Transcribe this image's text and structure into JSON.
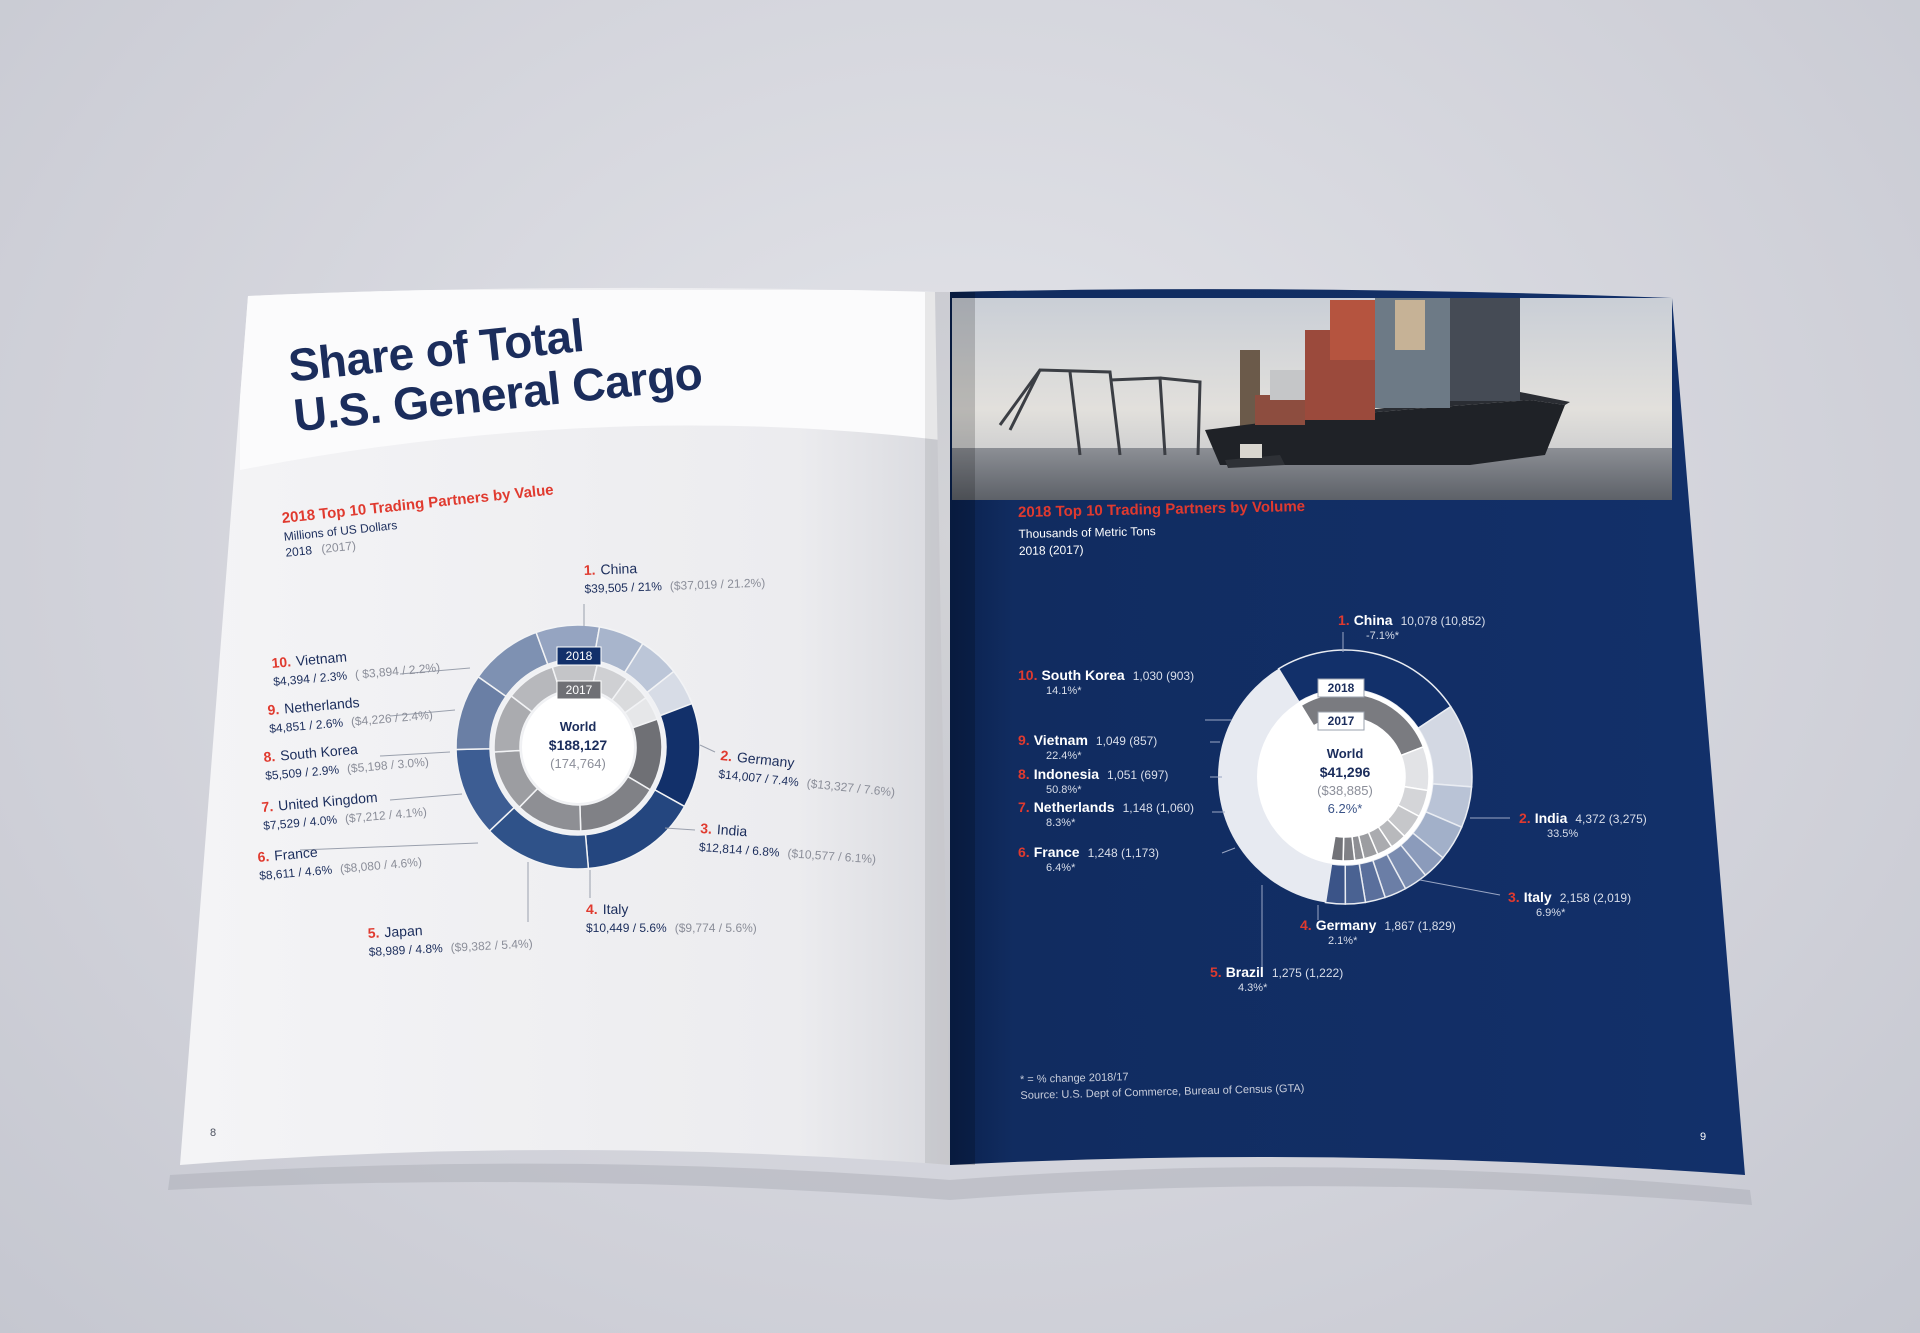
{
  "left_page": {
    "title_line1": "Share of Total",
    "title_line2": "U.S. General Cargo",
    "page_number": "8",
    "accent_color": "#e03a2f",
    "brand_color": "#1b2d5c"
  },
  "right_page": {
    "page_number": "9",
    "footnote": "* = % change 2018/17",
    "source": "Source: U.S. Dept of Commerce, Bureau of Census (GTA)",
    "background_color": "#0f2a5c",
    "photo_icon": "container-ship-photo"
  },
  "chart_data": [
    {
      "type": "pie",
      "title": "2018 Top 10 Trading Partners by Value",
      "subtitle": "Millions of US Dollars",
      "legend_year": "2018",
      "legend_year_prev": "(2017)",
      "ring_label_outer": "2018",
      "ring_label_inner": "2017",
      "center_label": "World",
      "center_value": "$188,127",
      "center_value_prev": "(174,764)",
      "categories": [
        "China",
        "Germany",
        "India",
        "Italy",
        "Japan",
        "France",
        "United Kingdom",
        "South Korea",
        "Netherlands",
        "Vietnam"
      ],
      "series": [
        {
          "name": "2018",
          "values": [
            39505,
            14007,
            12814,
            10449,
            8989,
            8611,
            7529,
            5509,
            4851,
            4394
          ],
          "shares": [
            21,
            7.4,
            6.8,
            5.6,
            4.8,
            4.6,
            4.0,
            2.9,
            2.6,
            2.3
          ]
        },
        {
          "name": "2017",
          "values": [
            37019,
            13327,
            10577,
            9774,
            9382,
            8080,
            7212,
            5198,
            4226,
            3894
          ],
          "shares": [
            21.2,
            7.6,
            6.1,
            5.6,
            5.4,
            4.6,
            4.1,
            3.0,
            2.4,
            2.2
          ]
        }
      ],
      "labels": [
        {
          "rank": "1.",
          "name": "China",
          "value": "$39,505 / 21%",
          "prev": "($37,019 / 21.2%)"
        },
        {
          "rank": "2.",
          "name": "Germany",
          "value": "$14,007 / 7.4%",
          "prev": "($13,327 / 7.6%)"
        },
        {
          "rank": "3.",
          "name": "India",
          "value": "$12,814 / 6.8%",
          "prev": "($10,577 / 6.1%)"
        },
        {
          "rank": "4.",
          "name": "Italy",
          "value": "$10,449 / 5.6%",
          "prev": "($9,774 / 5.6%)"
        },
        {
          "rank": "5.",
          "name": "Japan",
          "value": "$8,989 / 4.8%",
          "prev": "($9,382 / 5.4%)"
        },
        {
          "rank": "6.",
          "name": "France",
          "value": "$8,611 / 4.6%",
          "prev": "($8,080 / 4.6%)"
        },
        {
          "rank": "7.",
          "name": "United Kingdom",
          "value": "$7,529 / 4.0%",
          "prev": "($7,212 / 4.1%)"
        },
        {
          "rank": "8.",
          "name": "South Korea",
          "value": "$5,509 / 2.9%",
          "prev": "($5,198 / 3.0%)"
        },
        {
          "rank": "9.",
          "name": "Netherlands",
          "value": "$4,851 / 2.6%",
          "prev": "($4,226 / 2.4%)"
        },
        {
          "rank": "10.",
          "name": "Vietnam",
          "value": "$4,394 / 2.3%",
          "prev": "( $3,894 / 2.2%)"
        }
      ]
    },
    {
      "type": "pie",
      "title": "2018 Top 10 Trading Partners by Volume",
      "subtitle": "Thousands of Metric Tons",
      "legend_year_line": "2018 (2017)",
      "ring_label_outer": "2018",
      "ring_label_inner": "2017",
      "center_label": "World",
      "center_value": "$41,296",
      "center_value_prev": "($38,885)",
      "center_change": "6.2%*",
      "categories": [
        "China",
        "India",
        "Italy",
        "Germany",
        "Brazil",
        "France",
        "Netherlands",
        "Indonesia",
        "Vietnam",
        "South Korea"
      ],
      "series": [
        {
          "name": "2018",
          "values": [
            10078,
            4372,
            2158,
            1867,
            1275,
            1248,
            1148,
            1051,
            1049,
            1030
          ]
        },
        {
          "name": "2017",
          "values": [
            10852,
            3275,
            2019,
            1829,
            1222,
            1173,
            1060,
            697,
            857,
            903
          ]
        }
      ],
      "labels": [
        {
          "rank": "1.",
          "name": "China",
          "value": "10,078 (10,852)",
          "change": "-7.1%*"
        },
        {
          "rank": "2.",
          "name": "India",
          "value": "4,372 (3,275)",
          "change": "33.5%"
        },
        {
          "rank": "3.",
          "name": "Italy",
          "value": "2,158 (2,019)",
          "change": "6.9%*"
        },
        {
          "rank": "4.",
          "name": "Germany",
          "value": "1,867 (1,829)",
          "change": "2.1%*"
        },
        {
          "rank": "5.",
          "name": "Brazil",
          "value": "1,275 (1,222)",
          "change": "4.3%*"
        },
        {
          "rank": "6.",
          "name": "France",
          "value": "1,248 (1,173)",
          "change": "6.4%*"
        },
        {
          "rank": "7.",
          "name": "Netherlands",
          "value": "1,148 (1,060)",
          "change": "8.3%*"
        },
        {
          "rank": "8.",
          "name": "Indonesia",
          "value": "1,051 (697)",
          "change": "50.8%*"
        },
        {
          "rank": "9.",
          "name": "Vietnam",
          "value": "1,049 (857)",
          "change": "22.4%*"
        },
        {
          "rank": "10.",
          "name": "South Korea",
          "value": "1,030 (903)",
          "change": "14.1%*"
        }
      ]
    }
  ]
}
